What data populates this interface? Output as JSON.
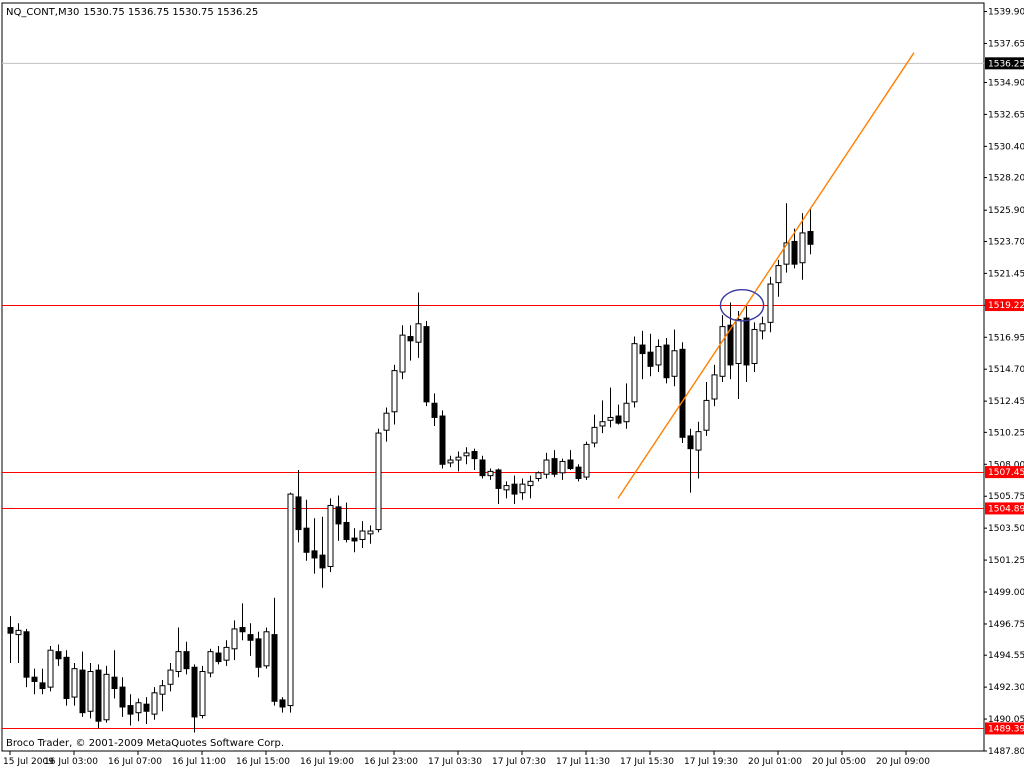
{
  "chart_header": {
    "symbol_tf": "NQ_CONT,M30",
    "ohlc": "1530.75 1536.75 1530.75 1536.25"
  },
  "copyright": "Broco Trader, © 2001-2009 MetaQuotes Software Corp.",
  "colors": {
    "background": "#ffffff",
    "frame": "#000000",
    "candle": "#000000",
    "level_line": "#ff0000",
    "trendline": "#ff8000",
    "ellipse": "#3a3aa0",
    "current_price_line": "#c0c0c0"
  },
  "chart_data": {
    "type": "candlestick",
    "title": "NQ_CONT,M30",
    "ylim": [
      1487.8,
      1540.5
    ],
    "y_ticks": [
      "1539.90",
      "1537.65",
      "1534.90",
      "1532.65",
      "1530.40",
      "1528.20",
      "1525.90",
      "1523.70",
      "1521.45",
      "1519.20",
      "1516.95",
      "1514.70",
      "1512.45",
      "1510.25",
      "1508.00",
      "1505.75",
      "1503.50",
      "1501.25",
      "1499.00",
      "1496.75",
      "1494.55",
      "1492.30",
      "1490.05",
      "1487.80"
    ],
    "x_ticks": [
      {
        "index": 0,
        "label": "15 Jul 2009"
      },
      {
        "index": 8,
        "label": "16 Jul 03:00"
      },
      {
        "index": 16,
        "label": "16 Jul 07:00"
      },
      {
        "index": 24,
        "label": "16 Jul 11:00"
      },
      {
        "index": 32,
        "label": "16 Jul 15:00"
      },
      {
        "index": 40,
        "label": "16 Jul 19:00"
      },
      {
        "index": 48,
        "label": "16 Jul 23:00"
      },
      {
        "index": 56,
        "label": "17 Jul 03:30"
      },
      {
        "index": 64,
        "label": "17 Jul 07:30"
      },
      {
        "index": 72,
        "label": "17 Jul 11:30"
      },
      {
        "index": 80,
        "label": "17 Jul 15:30"
      },
      {
        "index": 88,
        "label": "17 Jul 19:30"
      },
      {
        "index": 96,
        "label": "20 Jul 01:00"
      },
      {
        "index": 104,
        "label": "20 Jul 05:00"
      },
      {
        "index": 112,
        "label": "20 Jul 09:00"
      }
    ],
    "levels": [
      {
        "value": 1519.22,
        "label": "1519.22"
      },
      {
        "value": 1507.45,
        "label": "1507.45"
      },
      {
        "value": 1504.89,
        "label": "1504.89"
      },
      {
        "value": 1489.39,
        "label": "1489.39"
      }
    ],
    "current_price": {
      "value": 1536.25,
      "label": "1536.25"
    },
    "trendline": {
      "from": {
        "index": 76,
        "value": 1505.6
      },
      "to": {
        "index": 113,
        "value": 1537.0
      }
    },
    "ellipse_marker": {
      "index": 91.5,
      "value": 1519.2,
      "rx_bars": 2.7,
      "ry_price": 1.1
    },
    "candles": [
      [
        1496.5,
        1497.3,
        1494.0,
        1496.1
      ],
      [
        1496.0,
        1496.8,
        1494.0,
        1496.3
      ],
      [
        1496.2,
        1496.4,
        1492.3,
        1493.0
      ],
      [
        1493.0,
        1493.6,
        1491.8,
        1492.7
      ],
      [
        1492.6,
        1493.6,
        1491.8,
        1492.2
      ],
      [
        1492.3,
        1495.2,
        1492.0,
        1494.9
      ],
      [
        1494.8,
        1495.3,
        1493.8,
        1494.3
      ],
      [
        1494.4,
        1494.9,
        1491.0,
        1491.5
      ],
      [
        1491.6,
        1494.0,
        1491.0,
        1493.6
      ],
      [
        1493.5,
        1494.8,
        1490.2,
        1490.5
      ],
      [
        1490.6,
        1494.0,
        1490.1,
        1493.4
      ],
      [
        1493.5,
        1493.9,
        1489.4,
        1489.9
      ],
      [
        1490.0,
        1493.8,
        1489.8,
        1493.2
      ],
      [
        1493.0,
        1494.9,
        1491.5,
        1492.2
      ],
      [
        1492.3,
        1493.0,
        1490.2,
        1490.9
      ],
      [
        1491.0,
        1491.8,
        1489.6,
        1490.4
      ],
      [
        1490.5,
        1491.5,
        1489.9,
        1491.2
      ],
      [
        1491.1,
        1491.6,
        1489.7,
        1490.6
      ],
      [
        1490.4,
        1492.3,
        1490.0,
        1491.9
      ],
      [
        1491.8,
        1492.8,
        1490.6,
        1492.4
      ],
      [
        1492.5,
        1494.0,
        1492.0,
        1493.5
      ],
      [
        1493.4,
        1496.5,
        1493.0,
        1494.8
      ],
      [
        1494.8,
        1495.5,
        1493.2,
        1493.6
      ],
      [
        1493.7,
        1493.9,
        1489.1,
        1490.2
      ],
      [
        1490.3,
        1493.8,
        1490.1,
        1493.4
      ],
      [
        1493.3,
        1495.0,
        1493.0,
        1494.8
      ],
      [
        1494.7,
        1495.2,
        1493.9,
        1494.1
      ],
      [
        1494.2,
        1495.6,
        1493.8,
        1495.1
      ],
      [
        1495.0,
        1497.0,
        1494.2,
        1496.4
      ],
      [
        1496.5,
        1498.2,
        1495.6,
        1496.2
      ],
      [
        1496.0,
        1496.8,
        1494.5,
        1495.6
      ],
      [
        1495.7,
        1496.2,
        1493.0,
        1493.7
      ],
      [
        1493.8,
        1496.5,
        1493.6,
        1496.2
      ],
      [
        1496.0,
        1498.6,
        1491.0,
        1491.3
      ],
      [
        1491.4,
        1491.6,
        1490.5,
        1490.9
      ],
      [
        1491.0,
        1506.0,
        1490.5,
        1505.9
      ],
      [
        1505.7,
        1507.6,
        1502.5,
        1503.4
      ],
      [
        1503.5,
        1505.5,
        1501.2,
        1501.8
      ],
      [
        1501.9,
        1504.2,
        1500.3,
        1501.4
      ],
      [
        1501.6,
        1504.3,
        1499.3,
        1500.7
      ],
      [
        1500.8,
        1505.6,
        1500.4,
        1505.1
      ],
      [
        1505.0,
        1505.8,
        1502.6,
        1503.8
      ],
      [
        1503.9,
        1505.3,
        1502.5,
        1502.7
      ],
      [
        1502.8,
        1503.5,
        1501.8,
        1502.6
      ],
      [
        1502.7,
        1504.0,
        1502.1,
        1503.3
      ],
      [
        1503.1,
        1503.7,
        1502.4,
        1503.3
      ],
      [
        1503.4,
        1510.5,
        1503.2,
        1510.2
      ],
      [
        1510.4,
        1512.0,
        1509.6,
        1511.6
      ],
      [
        1511.7,
        1515.0,
        1510.8,
        1514.6
      ],
      [
        1514.5,
        1517.8,
        1514.0,
        1517.1
      ],
      [
        1517.0,
        1517.8,
        1515.3,
        1516.7
      ],
      [
        1516.6,
        1520.1,
        1515.5,
        1517.9
      ],
      [
        1517.7,
        1518.1,
        1512.1,
        1512.4
      ],
      [
        1512.3,
        1513.0,
        1510.7,
        1511.3
      ],
      [
        1511.4,
        1511.8,
        1507.7,
        1508.0
      ],
      [
        1508.1,
        1508.6,
        1507.8,
        1508.3
      ],
      [
        1508.3,
        1508.9,
        1507.5,
        1508.5
      ],
      [
        1508.6,
        1509.2,
        1508.0,
        1508.8
      ],
      [
        1508.9,
        1509.1,
        1507.6,
        1508.4
      ],
      [
        1508.3,
        1508.6,
        1507.0,
        1507.2
      ],
      [
        1507.2,
        1507.7,
        1506.9,
        1507.5
      ],
      [
        1507.6,
        1507.7,
        1505.2,
        1506.3
      ],
      [
        1506.2,
        1506.8,
        1505.6,
        1506.5
      ],
      [
        1506.6,
        1507.2,
        1505.2,
        1505.9
      ],
      [
        1506.0,
        1507.0,
        1505.5,
        1506.6
      ],
      [
        1506.5,
        1507.2,
        1505.6,
        1506.8
      ],
      [
        1507.0,
        1507.5,
        1506.8,
        1507.4
      ],
      [
        1507.3,
        1508.8,
        1507.0,
        1508.3
      ],
      [
        1508.4,
        1509.0,
        1507.1,
        1507.3
      ],
      [
        1507.4,
        1508.4,
        1506.9,
        1508.2
      ],
      [
        1508.3,
        1509.0,
        1507.6,
        1507.7
      ],
      [
        1507.8,
        1508.0,
        1506.8,
        1507.0
      ],
      [
        1507.1,
        1509.6,
        1506.9,
        1509.4
      ],
      [
        1509.5,
        1511.5,
        1509.2,
        1510.6
      ],
      [
        1510.7,
        1512.5,
        1510.2,
        1511.0
      ],
      [
        1511.1,
        1513.4,
        1510.6,
        1511.3
      ],
      [
        1511.4,
        1512.2,
        1510.8,
        1510.9
      ],
      [
        1511.0,
        1513.7,
        1510.5,
        1512.3
      ],
      [
        1512.4,
        1517.0,
        1512.0,
        1516.5
      ],
      [
        1516.4,
        1517.4,
        1514.0,
        1515.8
      ],
      [
        1515.9,
        1517.2,
        1514.2,
        1514.9
      ],
      [
        1515.0,
        1516.8,
        1514.5,
        1516.3
      ],
      [
        1516.4,
        1516.9,
        1513.7,
        1514.1
      ],
      [
        1514.2,
        1517.5,
        1513.5,
        1516.0
      ],
      [
        1516.1,
        1516.6,
        1509.5,
        1509.9
      ],
      [
        1510.0,
        1510.5,
        1506.0,
        1509.1
      ],
      [
        1509.0,
        1511.0,
        1507.0,
        1510.3
      ],
      [
        1510.4,
        1513.8,
        1510.0,
        1512.5
      ],
      [
        1512.6,
        1515.0,
        1512.1,
        1514.3
      ],
      [
        1514.2,
        1518.5,
        1513.8,
        1517.7
      ],
      [
        1517.8,
        1519.4,
        1514.0,
        1515.0
      ],
      [
        1515.1,
        1518.8,
        1512.6,
        1518.2
      ],
      [
        1518.3,
        1519.2,
        1513.8,
        1515.0
      ],
      [
        1515.1,
        1518.0,
        1514.5,
        1517.5
      ],
      [
        1517.4,
        1518.4,
        1516.8,
        1517.9
      ],
      [
        1518.0,
        1521.2,
        1517.3,
        1520.7
      ],
      [
        1520.8,
        1522.4,
        1519.8,
        1522.0
      ],
      [
        1522.1,
        1526.4,
        1521.5,
        1523.6
      ],
      [
        1523.7,
        1524.6,
        1521.8,
        1522.1
      ],
      [
        1522.2,
        1525.7,
        1521.0,
        1524.3
      ],
      [
        1524.4,
        1526.0,
        1522.8,
        1523.5
      ]
    ]
  }
}
